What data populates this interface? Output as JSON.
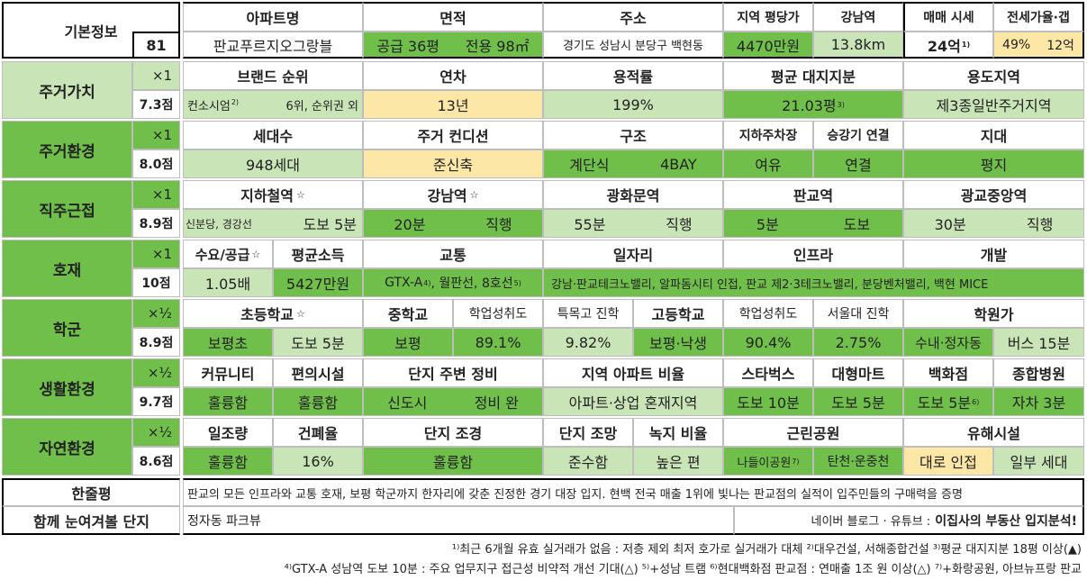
{
  "basic": {
    "label": "기본정보",
    "no": "81",
    "headers": {
      "apt": "아파트명",
      "area": "면적",
      "addr": "주소",
      "pyeong_price": "지역 평당가",
      "gangnam": "강남역",
      "sale": "매매 시세",
      "jeonse": "전세가율·갭"
    },
    "apt": "판교푸르지오그랑블",
    "area_supply": "공급 36평",
    "area_private": "전용 98㎡",
    "addr": "경기도 성남시 분당구 백현동",
    "pyeong_price": "4470만원",
    "gangnam": "13.8km",
    "sale": "24억",
    "sale_note": "1)",
    "jeonse_rate": "49%",
    "jeonse_gap": "12억"
  },
  "housing_value": {
    "label": "주거가치",
    "mult": "×1",
    "score": "7.3점",
    "headers": [
      "브랜드 순위",
      "연차",
      "용적률",
      "평균 대지지분",
      "용도지역"
    ],
    "brand": "컨소시엄",
    "brand_note": "2)",
    "brand_rank": "6위, 순위권 외",
    "age": "13년",
    "far": "199%",
    "land": "21.03평",
    "land_note": "3)",
    "zone": "제3종일반주거지역"
  },
  "housing_env": {
    "label": "주거환경",
    "mult": "×1",
    "score": "8.0점",
    "headers": [
      "세대수",
      "주거 컨디션",
      "구조",
      "지하주차장",
      "승강기 연결",
      "지대"
    ],
    "households": "948세대",
    "condition": "준신축",
    "struct_a": "계단식",
    "struct_b": "4BAY",
    "parking": "여유",
    "elevator": "연결",
    "terrain": "평지"
  },
  "commute": {
    "label": "직주근접",
    "mult": "×1",
    "score": "8.9점",
    "headers": [
      "지하철역",
      "강남역",
      "광화문역",
      "판교역",
      "광교중앙역"
    ],
    "star": "☆",
    "subway_line": "신분당, 경강선",
    "subway_walk": "도보 5분",
    "gangnam_time": "20분",
    "gangnam_mode": "직행",
    "gwang_time": "55분",
    "gwang_mode": "직행",
    "pangyo_time": "5분",
    "pangyo_mode": "도보",
    "gwanggyo_time": "30분",
    "gwanggyo_mode": "직행"
  },
  "dev": {
    "label": "호재",
    "mult": "×1",
    "score": "10점",
    "headers": [
      "수요/공급",
      "평균소득",
      "교통",
      "일자리",
      "인프라",
      "개발"
    ],
    "supply": "1.05배",
    "income": "5427만원",
    "traffic": "GTX-A",
    "traffic_note1": "4)",
    "traffic_rest": ", 월판선, 8호선",
    "traffic_note2": "5)",
    "jobs": "강남·판교테크노밸리, 알파돔시티 인접, 판교 제2·3테크노밸리, 분당벤처밸리, 백현 MICE"
  },
  "school": {
    "label": "학군",
    "mult": "×½",
    "score": "8.9점",
    "headers": [
      "초등학교",
      "중학교",
      "학업성취도",
      "특목고 진학",
      "고등학교",
      "학업성취도",
      "서울대 진학",
      "학원가"
    ],
    "elem": "보평초",
    "elem_walk": "도보 5분",
    "middle": "보평",
    "middle_rate": "89.1%",
    "special": "9.82%",
    "high": "보평·낙생",
    "high_rate": "90.4%",
    "snu": "2.75%",
    "academy": "수내·정자동",
    "academy_bus": "버스 15분"
  },
  "living": {
    "label": "생활환경",
    "mult": "×½",
    "score": "9.7점",
    "headers": [
      "커뮤니티",
      "편의시설",
      "단지 주변 정비",
      "지역 아파트 비율",
      "스타벅스",
      "대형마트",
      "백화점",
      "종합병원"
    ],
    "community": "훌륭함",
    "conv": "훌륭함",
    "surround_a": "신도시",
    "surround_b": "정비 완",
    "ratio": "아파트·상업 혼재지역",
    "starbucks": "도보 10분",
    "mart": "도보 5분",
    "dept": "도보 5분",
    "dept_note": "6)",
    "hospital": "자차 3분"
  },
  "nature": {
    "label": "자연환경",
    "mult": "×½",
    "score": "8.6점",
    "headers": [
      "일조량",
      "건폐율",
      "단지 조경",
      "단지 조망",
      "녹지 비율",
      "근린공원",
      "유해시설"
    ],
    "sun": "훌륭함",
    "bcr": "16%",
    "landscape": "훌륭함",
    "view": "준수함",
    "green": "높은 편",
    "park_a": "나들이공원",
    "park_note": "7)",
    "park_b": "탄천·운중천",
    "harm_a": "대로 인접",
    "harm_b": "일부 세대"
  },
  "summary": {
    "label": "한줄평",
    "text": "판교의 모든 인프라와 교통 호재, 보평 학군까지 한자리에 갖춘 진정한 경기 대장 입지. 현백 전국 매출 1위에 빛나는 판교점의 실적이 입주민들의 구매력을 증명"
  },
  "compare": {
    "label": "함께 눈여겨볼 단지",
    "value": "정자동 파크뷰",
    "credit_a": "네이버 블로그 · 유튜브 :",
    "credit_b": "이집사의 부동산 입지분석!"
  },
  "footnotes": {
    "line1": "¹⁾최근 6개월 유효 실거래가 없음 : 저층 제외 최저 호가로 실거래가 대체 ²⁾대우건설, 서해종합건설 ³⁾평균 대지지분 18평 이상(▲)",
    "line2": "⁴⁾GTX-A 성남역 도보 10분 : 주요 업무지구 접근성 비약적 개선 기대(△) ⁵⁾+성남 트램 ⁶⁾현대백화점 판교점 : 연매출 1조 원 이상(△) ⁷⁾+화랑공원, 아브뉴프랑 판교"
  }
}
